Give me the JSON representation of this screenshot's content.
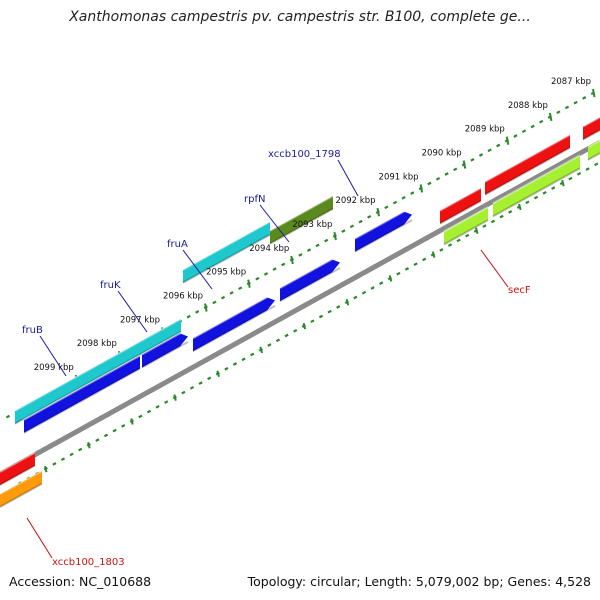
{
  "title": "Xanthomonas campestris pv. campestris str. B100, complete ge...",
  "footer": {
    "accession": "Accession: NC_010688",
    "summary": "Topology: circular; Length: 5,079,002 bp; Genes: 4,528"
  },
  "ruler": {
    "ticks": [
      {
        "label": "2087 kbp"
      },
      {
        "label": "2088 kbp"
      },
      {
        "label": "2089 kbp"
      },
      {
        "label": "2090 kbp"
      },
      {
        "label": "2091 kbp"
      },
      {
        "label": "2092 kbp"
      },
      {
        "label": "2093 kbp"
      },
      {
        "label": "2094 kbp"
      },
      {
        "label": "2095 kbp"
      },
      {
        "label": "2096 kbp"
      },
      {
        "label": "2097 kbp"
      },
      {
        "label": "2098 kbp"
      },
      {
        "label": "2099 kbp"
      }
    ]
  },
  "colors": {
    "cyan": "#1ec8cc",
    "blue": "#1212e0",
    "olive": "#5a8a1e",
    "red": "#ee1111",
    "lime": "#a6f032",
    "orange": "#ff9a0a",
    "backbone": "#8a8a8a",
    "ruler": "#2a8a2a",
    "label_blue": "#1a1aa0",
    "label_red": "#cc1111"
  },
  "gene_labels": [
    {
      "text": "fruB",
      "color": "label_blue"
    },
    {
      "text": "fruK",
      "color": "label_blue"
    },
    {
      "text": "fruA",
      "color": "label_blue"
    },
    {
      "text": "rpfN",
      "color": "label_blue"
    },
    {
      "text": "xccb100_1798",
      "color": "label_blue"
    },
    {
      "text": "secF",
      "color": "label_red"
    },
    {
      "text": "xccb100_1803",
      "color": "label_red"
    }
  ]
}
